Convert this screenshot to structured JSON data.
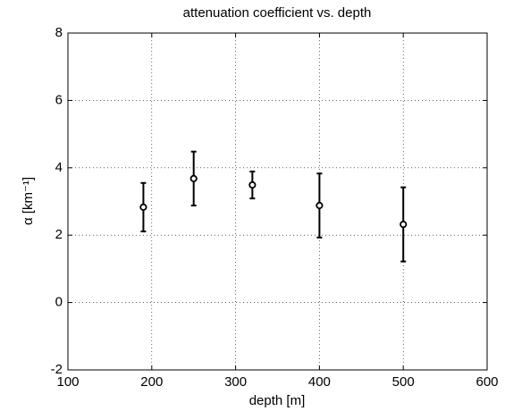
{
  "chart_data": {
    "type": "errorbar",
    "title": "attenuation coefficient vs. depth",
    "x_label": "depth [m]",
    "y_label": "α [km⁻¹]",
    "x": [
      190,
      250,
      320,
      400,
      500
    ],
    "values": [
      2.83,
      3.68,
      3.49,
      2.88,
      2.32
    ],
    "errors": [
      0.72,
      0.8,
      0.4,
      0.95,
      1.1
    ],
    "color": "#000000",
    "xlim": [
      100,
      600
    ],
    "xticks": [
      100,
      200,
      300,
      400,
      500,
      600
    ],
    "ylim": [
      -2,
      8
    ],
    "yticks": [
      -2,
      0,
      2,
      4,
      6,
      8
    ],
    "grid": true
  }
}
